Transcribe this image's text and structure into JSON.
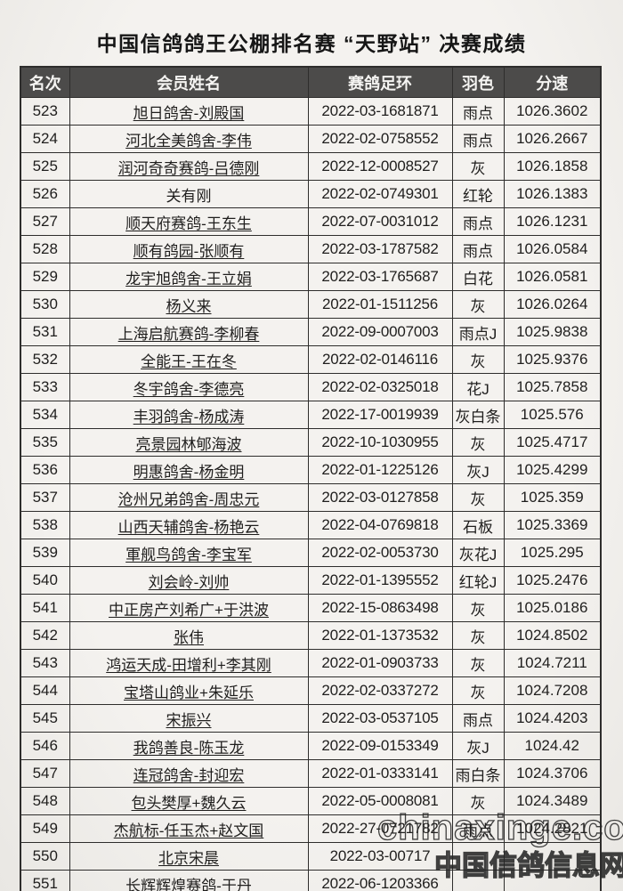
{
  "page": {
    "title": "中国信鸽鸽王公棚排名赛 “天野站” 决赛成绩"
  },
  "table": {
    "headers": [
      "名次",
      "会员姓名",
      "赛鸽足环",
      "羽色",
      "分速"
    ],
    "rows": [
      {
        "rank": "523",
        "name": "旭日鸽舍-刘殿国",
        "ring": "2022-03-1681871",
        "color": "雨点",
        "speed": "1026.3602",
        "u": true
      },
      {
        "rank": "524",
        "name": "河北全美鸽舍-李伟",
        "ring": "2022-02-0758552",
        "color": "雨点",
        "speed": "1026.2667",
        "u": true
      },
      {
        "rank": "525",
        "name": "润河奇奇赛鸽-吕德刚",
        "ring": "2022-12-0008527",
        "color": "灰",
        "speed": "1026.1858",
        "u": true
      },
      {
        "rank": "526",
        "name": "关有刚",
        "ring": "2022-02-0749301",
        "color": "红轮",
        "speed": "1026.1383",
        "u": false
      },
      {
        "rank": "527",
        "name": "顺天府赛鸽-王东生",
        "ring": "2022-07-0031012",
        "color": "雨点",
        "speed": "1026.1231",
        "u": true
      },
      {
        "rank": "528",
        "name": "顺有鸽园-张顺有",
        "ring": "2022-03-1787582",
        "color": "雨点",
        "speed": "1026.0584",
        "u": true
      },
      {
        "rank": "529",
        "name": "龙宇旭鸽舍-王立娟",
        "ring": "2022-03-1765687",
        "color": "白花",
        "speed": "1026.0581",
        "u": true
      },
      {
        "rank": "530",
        "name": "杨义来",
        "ring": "2022-01-1511256",
        "color": "灰",
        "speed": "1026.0264",
        "u": true
      },
      {
        "rank": "531",
        "name": "上海启航赛鸽-李柳春",
        "ring": "2022-09-0007003",
        "color": "雨点J",
        "speed": "1025.9838",
        "u": true
      },
      {
        "rank": "532",
        "name": "全能王-王在冬",
        "ring": "2022-02-0146116",
        "color": "灰",
        "speed": "1025.9376",
        "u": true
      },
      {
        "rank": "533",
        "name": "冬宇鸽舍-李德亮",
        "ring": "2022-02-0325018",
        "color": "花J",
        "speed": "1025.7858",
        "u": true
      },
      {
        "rank": "534",
        "name": "丰羽鸽舍-杨成涛",
        "ring": "2022-17-0019939",
        "color": "灰白条",
        "speed": "1025.576",
        "u": true
      },
      {
        "rank": "535",
        "name": "亮景园林郇海波",
        "ring": "2022-10-1030955",
        "color": "灰",
        "speed": "1025.4717",
        "u": true
      },
      {
        "rank": "536",
        "name": "明惠鸽舍-杨金明",
        "ring": "2022-01-1225126",
        "color": "灰J",
        "speed": "1025.4299",
        "u": true
      },
      {
        "rank": "537",
        "name": "沧州兄弟鸽舍-周忠元",
        "ring": "2022-03-0127858",
        "color": "灰",
        "speed": "1025.359",
        "u": true
      },
      {
        "rank": "538",
        "name": "山西天辅鸽舍-杨艳云",
        "ring": "2022-04-0769818",
        "color": "石板",
        "speed": "1025.3369",
        "u": true
      },
      {
        "rank": "539",
        "name": "軍舰鸟鸽舍-李宝军",
        "ring": "2022-02-0053730",
        "color": "灰花J",
        "speed": "1025.295",
        "u": true
      },
      {
        "rank": "540",
        "name": "刘会岭-刘帅",
        "ring": "2022-01-1395552",
        "color": "红轮J",
        "speed": "1025.2476",
        "u": true
      },
      {
        "rank": "541",
        "name": "中正房产刘希广+于洪波",
        "ring": "2022-15-0863498",
        "color": "灰",
        "speed": "1025.0186",
        "u": true
      },
      {
        "rank": "542",
        "name": "张伟",
        "ring": "2022-01-1373532",
        "color": "灰",
        "speed": "1024.8502",
        "u": true
      },
      {
        "rank": "543",
        "name": "鸿运天成-田增利+李其刚",
        "ring": "2022-01-0903733",
        "color": "灰",
        "speed": "1024.7211",
        "u": true
      },
      {
        "rank": "544",
        "name": "宝塔山鸽业+朱延乐",
        "ring": "2022-02-0337272",
        "color": "灰",
        "speed": "1024.7208",
        "u": true
      },
      {
        "rank": "545",
        "name": "宋振兴",
        "ring": "2022-03-0537105",
        "color": "雨点",
        "speed": "1024.4203",
        "u": true
      },
      {
        "rank": "546",
        "name": "我鸽善良-陈玉龙",
        "ring": "2022-09-0153349",
        "color": "灰J",
        "speed": "1024.42",
        "u": true
      },
      {
        "rank": "547",
        "name": "连冠鸽舍-封迎宏",
        "ring": "2022-01-0333141",
        "color": "雨白条",
        "speed": "1024.3706",
        "u": true
      },
      {
        "rank": "548",
        "name": "包头樊厚+魏久云",
        "ring": "2022-05-0008081",
        "color": "灰",
        "speed": "1024.3489",
        "u": true
      },
      {
        "rank": "549",
        "name": "杰航标-任玉杰+赵文国",
        "ring": "2022-27-0721782",
        "color": "雨点",
        "speed": "1024.2821",
        "u": true
      },
      {
        "rank": "550",
        "name": "北京宋晨",
        "ring": "2022-03-00717",
        "color": "",
        "speed": "",
        "u": true
      },
      {
        "rank": "551",
        "name": "长辉辉煌赛鸽-于丹",
        "ring": "2022-06-1203366",
        "color": "",
        "speed": "",
        "u": true
      }
    ]
  },
  "watermark": {
    "line1": "chinaxinge.com",
    "line2": "中国信鸽信息网"
  }
}
